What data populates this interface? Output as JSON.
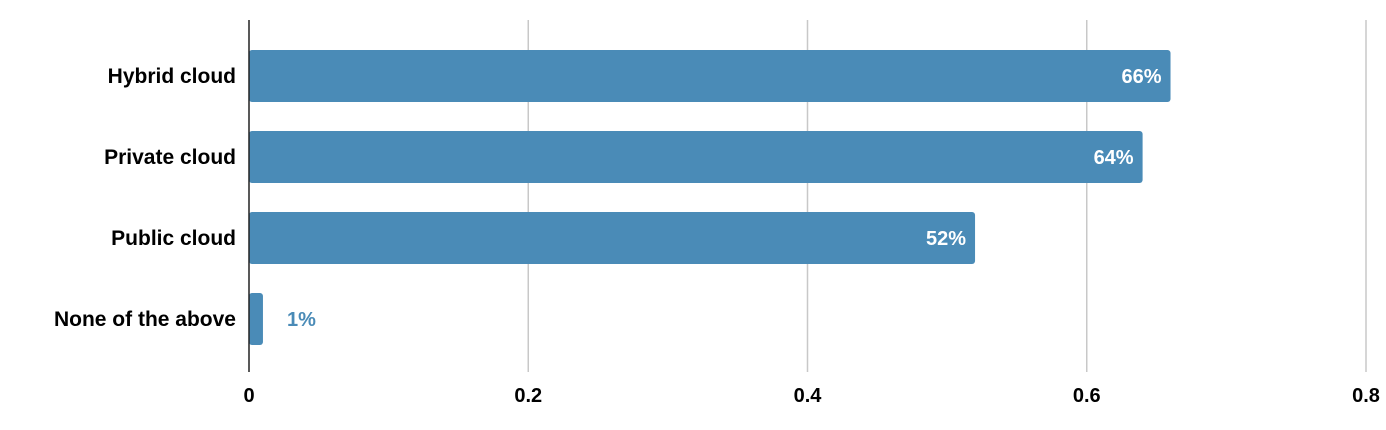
{
  "chart_data": {
    "type": "bar",
    "orientation": "horizontal",
    "title": "",
    "xlabel": "",
    "ylabel": "",
    "categories": [
      "Hybrid cloud",
      "Private cloud",
      "Public cloud",
      "None of the above"
    ],
    "values": [
      0.66,
      0.64,
      0.52,
      0.01
    ],
    "data_labels": [
      "66%",
      "64%",
      "52%",
      "1%"
    ],
    "xlim": [
      0,
      0.8
    ],
    "x_ticks": [
      "0",
      "0.2",
      "0.4",
      "0.6",
      "0.8"
    ],
    "x_tick_values": [
      0,
      0.2,
      0.4,
      0.6,
      0.8
    ],
    "grid": true,
    "legend": "none"
  },
  "colors": {
    "bar": "#4a8bb7",
    "label_inside": "#ffffff",
    "label_outside": "#4a8bb7"
  }
}
